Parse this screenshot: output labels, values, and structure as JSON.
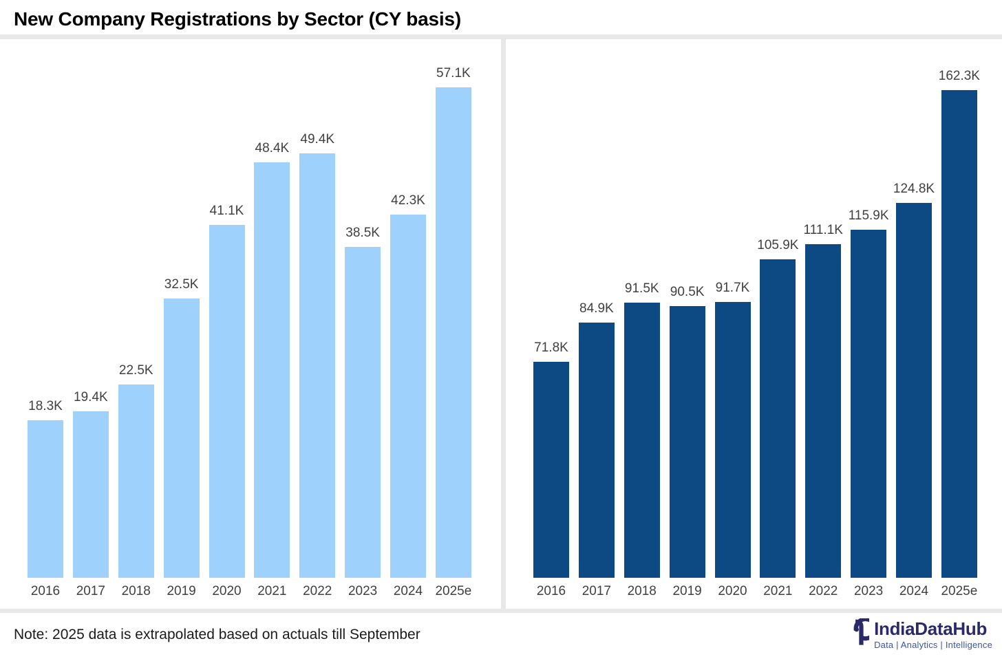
{
  "page": {
    "title": "New Company Registrations by Sector (CY basis)",
    "note": "Note: 2025 data is extrapolated based on actuals till September"
  },
  "branding": {
    "name": "IndiaDataHub",
    "tagline": "Data | Analytics | Intelligence",
    "navy": "#2b2968",
    "blue": "#3b54a4"
  },
  "chart_data": [
    {
      "type": "bar",
      "panel": "left",
      "categories": [
        "2016",
        "2017",
        "2018",
        "2019",
        "2020",
        "2021",
        "2022",
        "2023",
        "2024",
        "2025e"
      ],
      "values": [
        18.3,
        19.4,
        22.5,
        32.5,
        41.1,
        48.4,
        49.4,
        38.5,
        42.3,
        57.1
      ],
      "value_labels": [
        "18.3K",
        "19.4K",
        "22.5K",
        "32.5K",
        "41.1K",
        "48.4K",
        "49.4K",
        "38.5K",
        "42.3K",
        "57.1K"
      ],
      "unit": "K",
      "bar_color": "#9ed1fc",
      "label_color": "#404040",
      "xlabel": "",
      "ylabel": "",
      "ylim": [
        0,
        60
      ],
      "grid": false,
      "legend": false
    },
    {
      "type": "bar",
      "panel": "right",
      "categories": [
        "2016",
        "2017",
        "2018",
        "2019",
        "2020",
        "2021",
        "2022",
        "2023",
        "2024",
        "2025e"
      ],
      "values": [
        71.8,
        84.9,
        91.5,
        90.5,
        91.7,
        105.9,
        111.1,
        115.9,
        124.8,
        162.3
      ],
      "value_labels": [
        "71.8K",
        "84.9K",
        "91.5K",
        "90.5K",
        "91.7K",
        "105.9K",
        "111.1K",
        "115.9K",
        "124.8K",
        "162.3K"
      ],
      "unit": "K",
      "bar_color": "#0d4a84",
      "label_color": "#404040",
      "xlabel": "",
      "ylabel": "",
      "ylim": [
        0,
        170
      ],
      "grid": false,
      "legend": false
    }
  ]
}
